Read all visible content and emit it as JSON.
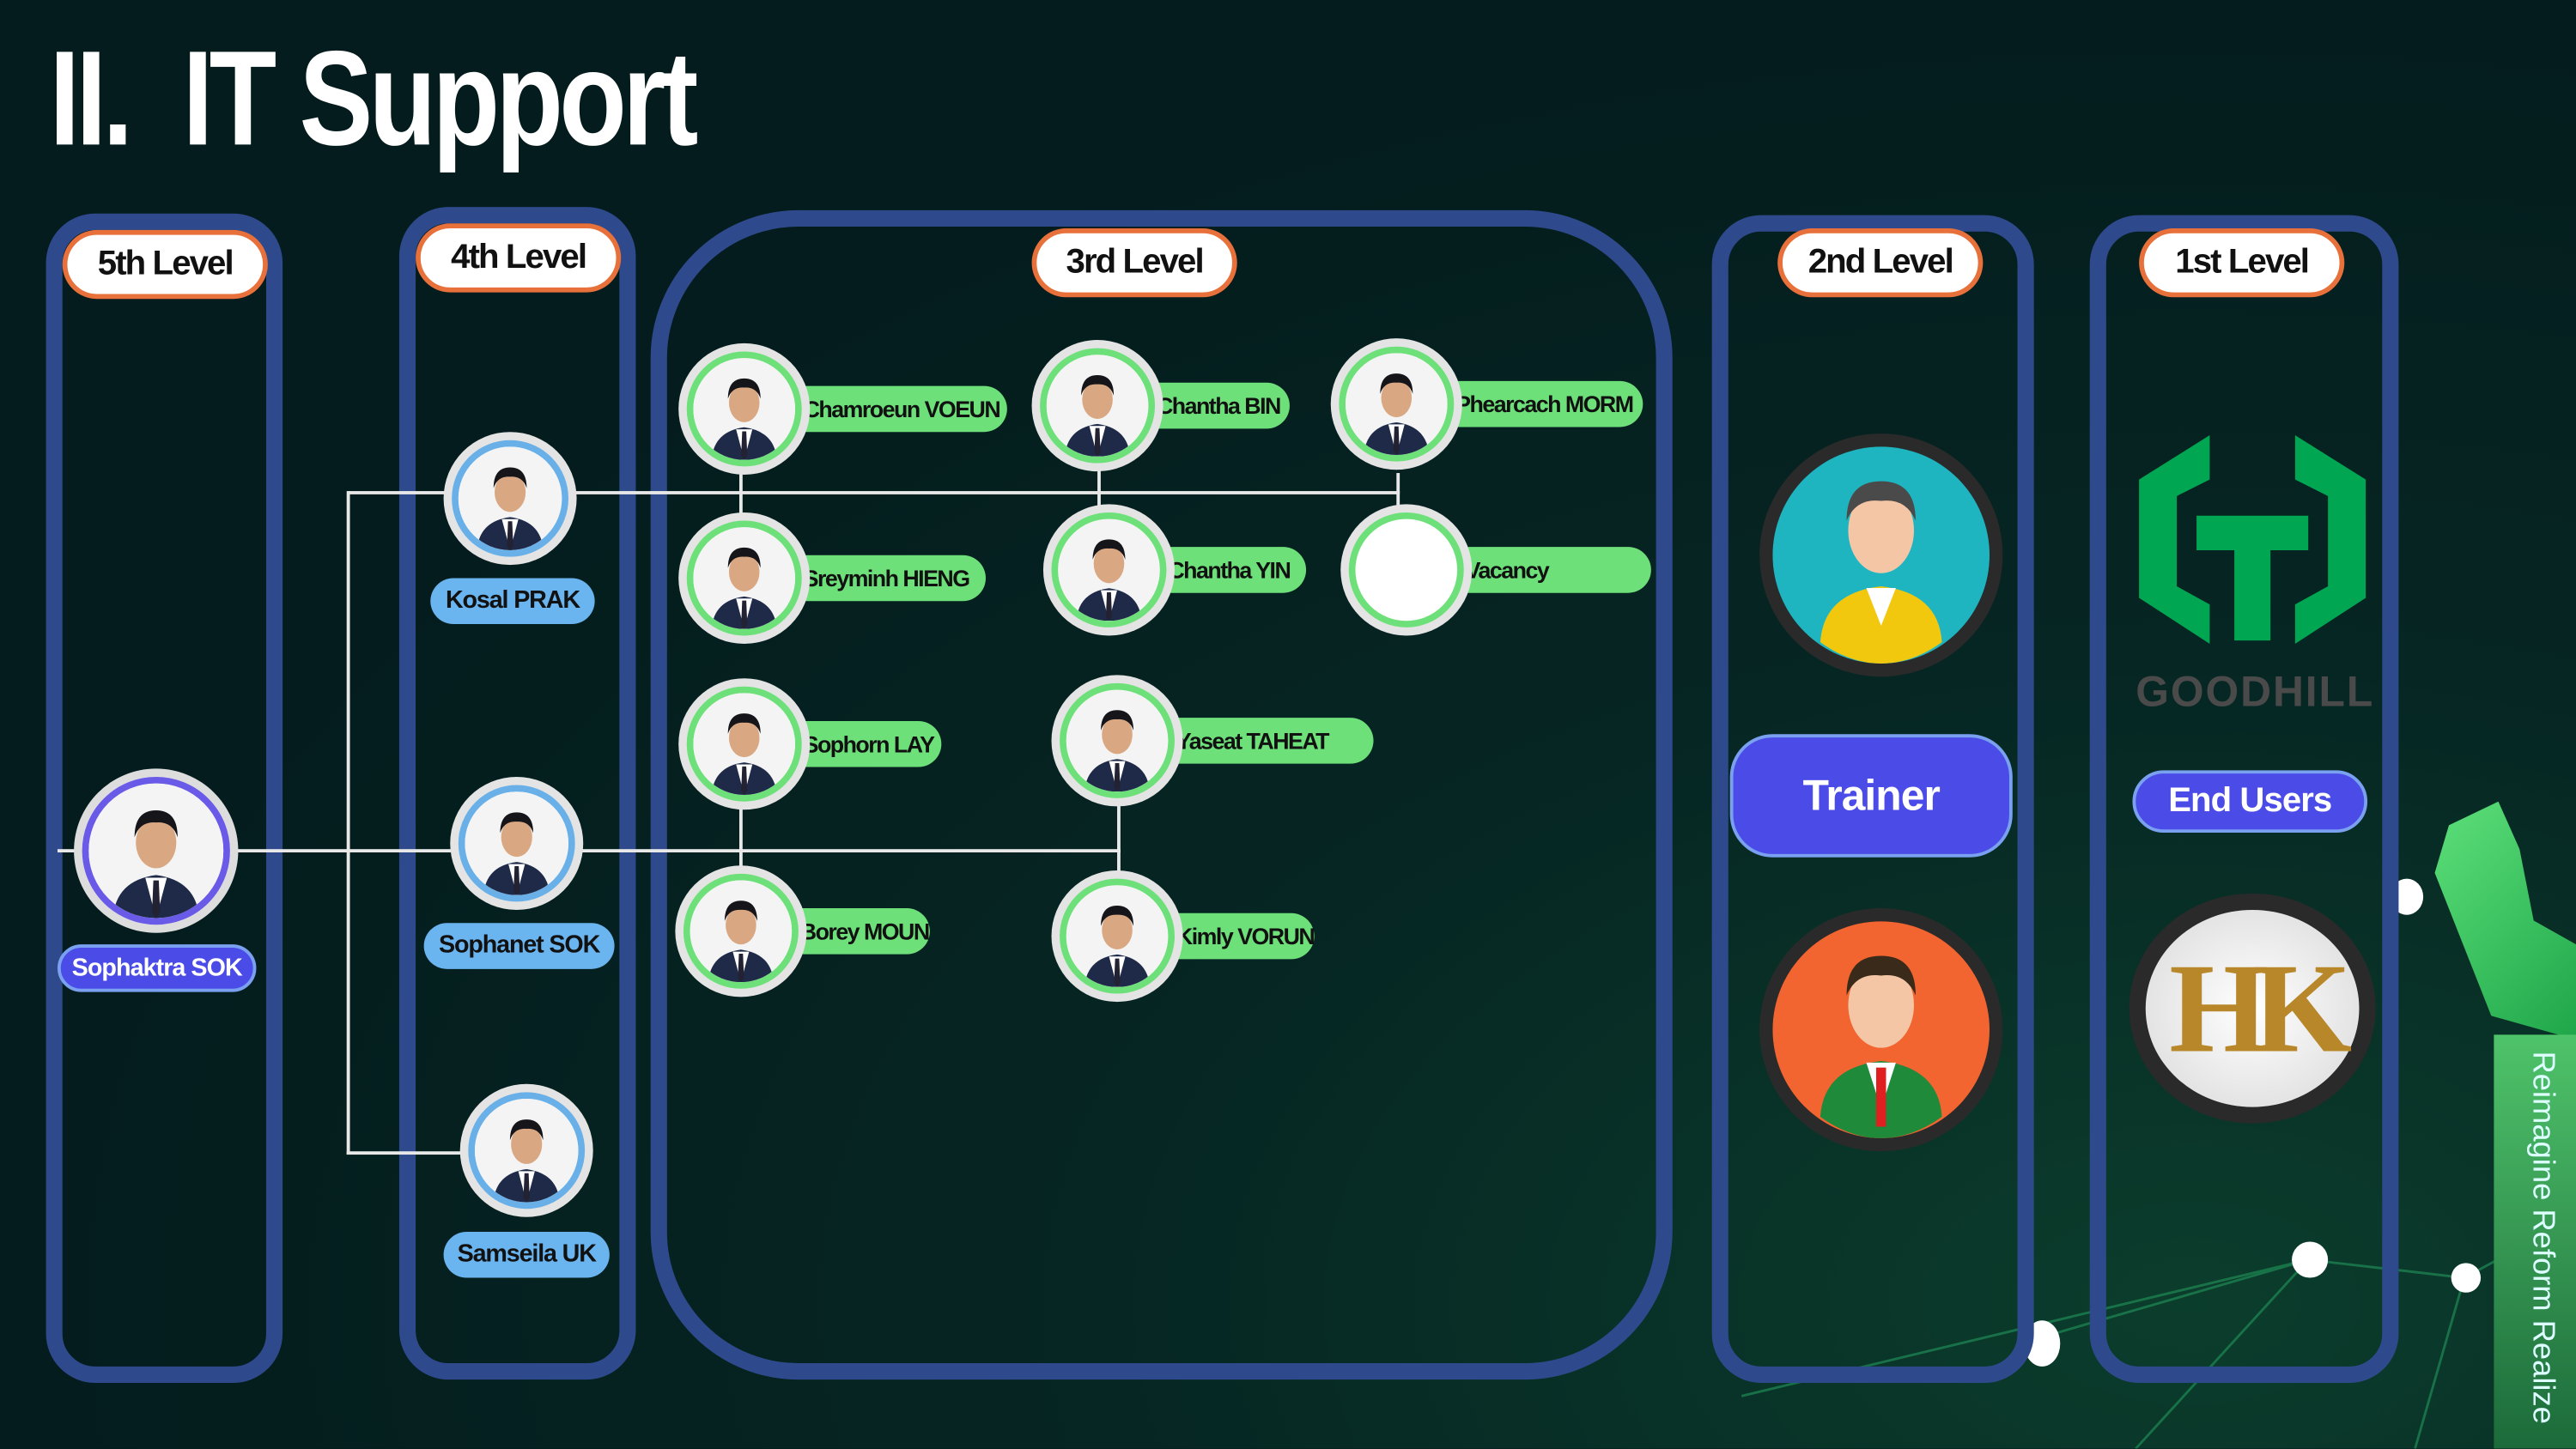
{
  "title": "II.  IT Support",
  "levels": {
    "fifth": "5th Level",
    "fourth": "4th Level",
    "third": "3rd Level",
    "second": "2nd Level",
    "first": "1st Level"
  },
  "fifth_level": {
    "name": "Sophaktra SOK"
  },
  "fourth_level": [
    {
      "name": "Kosal PRAK"
    },
    {
      "name": "Sophanet SOK"
    },
    {
      "name": "Samseila UK"
    }
  ],
  "third_level": [
    {
      "name": "Chamroeun  VOEUN"
    },
    {
      "name": "Chantha BIN"
    },
    {
      "name": "Phearcach MORM"
    },
    {
      "name": "Sreyminh HIENG"
    },
    {
      "name": "Chantha YIN"
    },
    {
      "name": "Vacancy"
    },
    {
      "name": "Sophorn LAY"
    },
    {
      "name": "Yaseat TAHEAT"
    },
    {
      "name": "Borey MOUN"
    },
    {
      "name": "Kimly VORUN"
    }
  ],
  "second_level": {
    "label": "Trainer"
  },
  "first_level": {
    "logo_text": "GOODHILL",
    "label": "End Users",
    "logo2_text": "HK"
  },
  "tagline": "Reimagine Reform Realize",
  "colors": {
    "panel_border": "#2e4a8c",
    "level_border": "#e8703a",
    "green_pill": "#6de07a",
    "blue_pill": "#6ab4f0",
    "purple_pill": "#4b4be8",
    "goodhill_green": "#00a651"
  }
}
